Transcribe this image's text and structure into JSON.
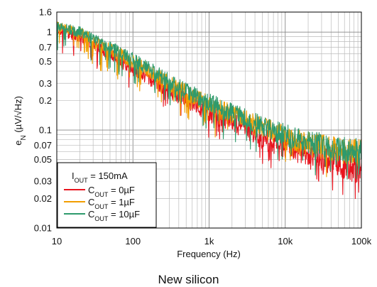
{
  "caption": "New silicon",
  "chart_data": {
    "type": "line",
    "xlabel": "Frequency (Hz)",
    "ylabel": "eN (µV/√Hz)",
    "x_scale": "log",
    "y_scale": "log",
    "xlim": [
      10,
      100000
    ],
    "ylim": [
      0.01,
      1.6
    ],
    "grid": true,
    "x_tick_labels": [
      {
        "value": 10,
        "label": "10"
      },
      {
        "value": 100,
        "label": "100"
      },
      {
        "value": 1000,
        "label": "1k"
      },
      {
        "value": 10000,
        "label": "10k"
      },
      {
        "value": 100000,
        "label": "100k"
      }
    ],
    "y_tick_labels": [
      {
        "value": 1.6,
        "label": "1.6"
      },
      {
        "value": 1,
        "label": "1"
      },
      {
        "value": 0.7,
        "label": "0.7"
      },
      {
        "value": 0.5,
        "label": "0.5"
      },
      {
        "value": 0.3,
        "label": "0.3"
      },
      {
        "value": 0.2,
        "label": "0.2"
      },
      {
        "value": 0.1,
        "label": "0.1"
      },
      {
        "value": 0.07,
        "label": "0.07"
      },
      {
        "value": 0.05,
        "label": "0.05"
      },
      {
        "value": 0.03,
        "label": "0.03"
      },
      {
        "value": 0.02,
        "label": "0.02"
      },
      {
        "value": 0.01,
        "label": "0.01"
      }
    ],
    "legend": {
      "placement": "bottom-left",
      "header": {
        "main": "I",
        "sub": "OUT",
        "tail": " = 150mA"
      }
    },
    "series": [
      {
        "name": "COUT = 0µF",
        "label_main": "C",
        "label_sub": "OUT",
        "label_tail": " = 0µF",
        "color": "#e8141e",
        "x": [
          10,
          20,
          50,
          100,
          200,
          500,
          1000,
          2000,
          5000,
          10000,
          20000,
          50000,
          100000
        ],
        "y": [
          1.05,
          0.9,
          0.58,
          0.42,
          0.31,
          0.2,
          0.15,
          0.12,
          0.082,
          0.068,
          0.058,
          0.045,
          0.038
        ]
      },
      {
        "name": "COUT = 1µF",
        "label_main": "C",
        "label_sub": "OUT",
        "label_tail": " = 1µF",
        "color": "#f29e00",
        "x": [
          10,
          20,
          50,
          100,
          200,
          500,
          1000,
          2000,
          5000,
          10000,
          20000,
          50000,
          100000
        ],
        "y": [
          1.15,
          0.98,
          0.67,
          0.5,
          0.36,
          0.24,
          0.18,
          0.145,
          0.105,
          0.085,
          0.072,
          0.062,
          0.058
        ]
      },
      {
        "name": "COUT = 10µF",
        "label_main": "C",
        "label_sub": "OUT",
        "label_tail": " = 10µF",
        "color": "#2e9a6c",
        "x": [
          10,
          20,
          50,
          100,
          200,
          500,
          1000,
          2000,
          5000,
          10000,
          20000,
          50000,
          100000
        ],
        "y": [
          1.15,
          1.0,
          0.7,
          0.52,
          0.38,
          0.25,
          0.19,
          0.15,
          0.108,
          0.088,
          0.075,
          0.064,
          0.06
        ]
      }
    ]
  }
}
